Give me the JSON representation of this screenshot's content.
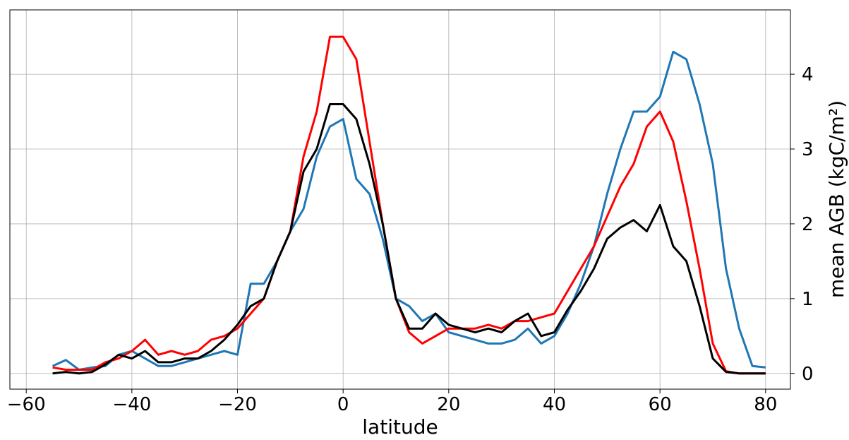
{
  "chart_data": {
    "type": "line",
    "xlabel": "latitude",
    "ylabel": "mean AGB (kgC/m²)",
    "yaxis_side": "right",
    "grid": true,
    "x": [
      -55,
      -52.5,
      -50,
      -47.5,
      -45,
      -42.5,
      -40,
      -37.5,
      -35,
      -32.5,
      -30,
      -27.5,
      -25,
      -22.5,
      -20,
      -17.5,
      -15,
      -12.5,
      -10,
      -7.5,
      -5,
      -2.5,
      0,
      2.5,
      5,
      7.5,
      10,
      12.5,
      15,
      17.5,
      20,
      22.5,
      25,
      27.5,
      30,
      32.5,
      35,
      37.5,
      40,
      42.5,
      45,
      47.5,
      50,
      52.5,
      55,
      57.5,
      60,
      62.5,
      65,
      67.5,
      70,
      72.5,
      75,
      77.5,
      80
    ],
    "series": [
      {
        "color": "#1f77b4",
        "values": [
          0.1,
          0.18,
          0.05,
          0.08,
          0.1,
          0.25,
          0.3,
          0.2,
          0.1,
          0.1,
          0.15,
          0.2,
          0.25,
          0.3,
          0.25,
          1.2,
          1.2,
          1.5,
          1.9,
          2.2,
          2.9,
          3.3,
          3.4,
          2.6,
          2.4,
          1.8,
          1.0,
          0.9,
          0.7,
          0.8,
          0.55,
          0.5,
          0.45,
          0.4,
          0.4,
          0.45,
          0.6,
          0.4,
          0.5,
          0.8,
          1.2,
          1.7,
          2.4,
          3.0,
          3.5,
          3.5,
          3.7,
          4.3,
          4.2,
          3.6,
          2.8,
          1.4,
          0.6,
          0.1,
          0.08
        ]
      },
      {
        "color": "#ff0000",
        "values": [
          0.08,
          0.05,
          0.05,
          0.05,
          0.15,
          0.2,
          0.3,
          0.45,
          0.25,
          0.3,
          0.25,
          0.3,
          0.45,
          0.5,
          0.6,
          0.8,
          1.0,
          1.5,
          1.9,
          2.9,
          3.5,
          4.5,
          4.5,
          4.2,
          3.1,
          2.0,
          1.0,
          0.55,
          0.4,
          0.5,
          0.6,
          0.6,
          0.6,
          0.65,
          0.6,
          0.7,
          0.7,
          0.75,
          0.8,
          1.1,
          1.4,
          1.7,
          2.1,
          2.5,
          2.8,
          3.3,
          3.5,
          3.1,
          2.3,
          1.4,
          0.4,
          0.03,
          0,
          0,
          0
        ]
      },
      {
        "color": "#000000",
        "values": [
          0,
          0.02,
          0,
          0.02,
          0.12,
          0.25,
          0.2,
          0.3,
          0.15,
          0.15,
          0.2,
          0.2,
          0.3,
          0.45,
          0.65,
          0.9,
          1.0,
          1.5,
          1.9,
          2.7,
          3.0,
          3.6,
          3.6,
          3.4,
          2.8,
          2.0,
          1.0,
          0.6,
          0.6,
          0.8,
          0.65,
          0.6,
          0.55,
          0.6,
          0.55,
          0.7,
          0.8,
          0.5,
          0.55,
          0.85,
          1.1,
          1.4,
          1.8,
          1.95,
          2.05,
          1.9,
          2.25,
          1.7,
          1.5,
          0.9,
          0.2,
          0.02,
          0,
          0,
          0
        ]
      }
    ],
    "xlim": [
      -63.1,
      84.7
    ],
    "xticks": [
      {
        "value": -60,
        "label": "−60"
      },
      {
        "value": -40,
        "label": "−40"
      },
      {
        "value": -20,
        "label": "−20"
      },
      0,
      20,
      40,
      60,
      80
    ],
    "ylim": [
      -0.21,
      4.86
    ],
    "yticks": [
      0,
      1,
      2,
      3,
      4
    ]
  }
}
